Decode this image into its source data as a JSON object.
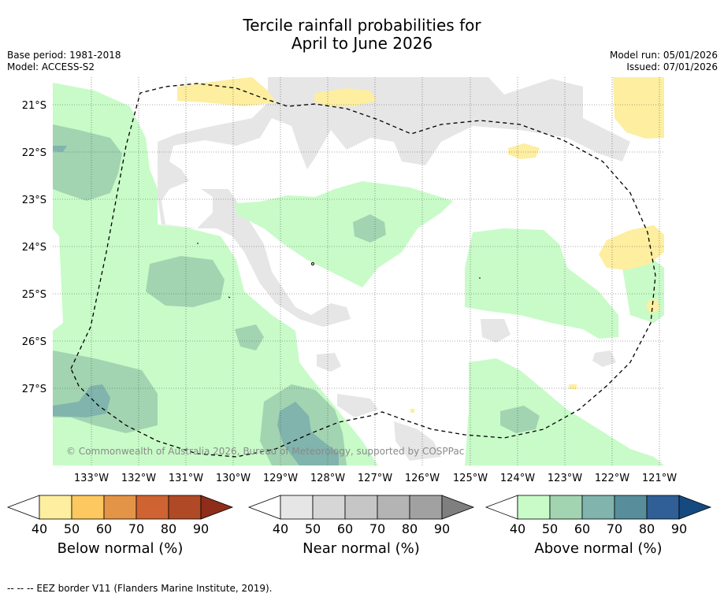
{
  "header": {
    "title_line1": "Tercile rainfall probabilities for",
    "title_line2": "April to June 2026",
    "base_period": "Base period: 1981-2018",
    "model": "Model: ACCESS-S2",
    "model_run": "Model run: 05/01/2026",
    "issued": "Issued: 07/01/2026"
  },
  "map": {
    "copyright": "© Commonwealth of Australia 2026, Bureau of Meteorology, supported by COSPPac",
    "lat_labels": [
      "21°S",
      "22°S",
      "23°S",
      "24°S",
      "25°S",
      "26°S",
      "27°S"
    ],
    "lon_labels": [
      "133°W",
      "132°W",
      "131°W",
      "130°W",
      "129°W",
      "128°W",
      "127°W",
      "126°W",
      "125°W",
      "124°W",
      "123°W",
      "122°W",
      "121°W"
    ]
  },
  "legend": {
    "below": {
      "title": "Below normal (%)",
      "ticks": [
        "40",
        "50",
        "60",
        "70",
        "80",
        "90"
      ],
      "colors": [
        "#fdeea0",
        "#fcc85f",
        "#e49447",
        "#cf6332",
        "#b04a26",
        "#8e2d19"
      ]
    },
    "near": {
      "title": "Near normal (%)",
      "ticks": [
        "40",
        "50",
        "60",
        "70",
        "80",
        "90"
      ],
      "colors": [
        "#e6e6e6",
        "#d6d6d6",
        "#c6c6c6",
        "#b4b4b4",
        "#a1a1a1",
        "#7f7f7f"
      ]
    },
    "above": {
      "title": "Above normal (%)",
      "ticks": [
        "40",
        "50",
        "60",
        "70",
        "80",
        "90"
      ],
      "colors": [
        "#c8fbc8",
        "#a2d4b1",
        "#80b4ad",
        "#588e9b",
        "#2f5f96",
        "#154a80"
      ]
    }
  },
  "footer": {
    "eez_note": "--  --  -- EEZ border V11 (Flanders Marine Institute, 2019)."
  }
}
